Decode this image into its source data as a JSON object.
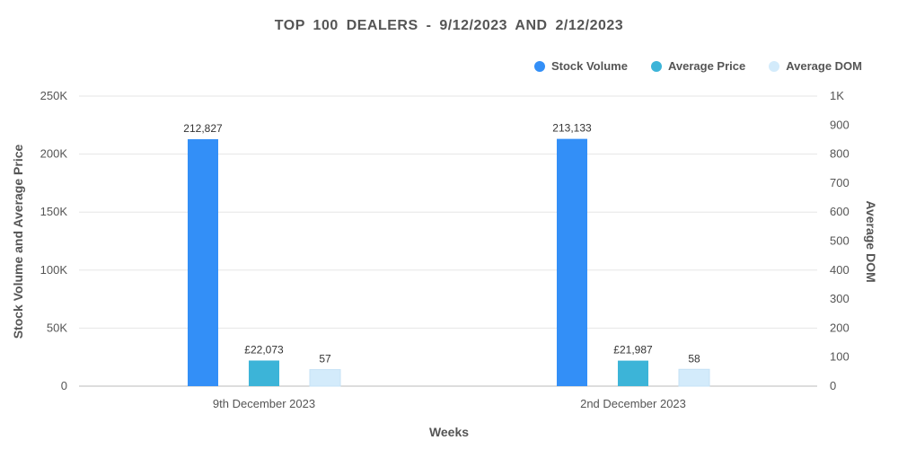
{
  "chart_data": {
    "type": "bar",
    "title": "TOP 100 DEALERS -  9/12/2023 AND 2/12/2023",
    "xlabel": "Weeks",
    "ylabel_left": "Stock Volume and Average Price",
    "ylabel_right": "Average DOM",
    "categories": [
      "9th December 2023",
      "2nd December 2023"
    ],
    "series": [
      {
        "name": "Stock Volume",
        "axis": "left",
        "color": "#338ff7",
        "values": [
          212827,
          213133
        ],
        "labels": [
          "212,827",
          "213,133"
        ]
      },
      {
        "name": "Average Price",
        "axis": "left",
        "color": "#3cb4d8",
        "values": [
          22073,
          21987
        ],
        "labels": [
          "£22,073",
          "£21,987"
        ]
      },
      {
        "name": "Average DOM",
        "axis": "right",
        "color": "#d3ebfb",
        "values": [
          57,
          58
        ],
        "labels": [
          "57",
          "58"
        ]
      }
    ],
    "ylim_left": [
      0,
      250000
    ],
    "ylim_right": [
      0,
      1000
    ],
    "left_ticks": [
      {
        "value": 0,
        "label": "0"
      },
      {
        "value": 50000,
        "label": "50K"
      },
      {
        "value": 100000,
        "label": "100K"
      },
      {
        "value": 150000,
        "label": "150K"
      },
      {
        "value": 200000,
        "label": "200K"
      },
      {
        "value": 250000,
        "label": "250K"
      }
    ],
    "right_ticks": [
      {
        "value": 0,
        "label": "0"
      },
      {
        "value": 100,
        "label": "100"
      },
      {
        "value": 200,
        "label": "200"
      },
      {
        "value": 300,
        "label": "300"
      },
      {
        "value": 400,
        "label": "400"
      },
      {
        "value": 500,
        "label": "500"
      },
      {
        "value": 600,
        "label": "600"
      },
      {
        "value": 700,
        "label": "700"
      },
      {
        "value": 800,
        "label": "800"
      },
      {
        "value": 900,
        "label": "900"
      },
      {
        "value": 1000,
        "label": "1K"
      }
    ],
    "grid": true,
    "legend_position": "top-right"
  }
}
